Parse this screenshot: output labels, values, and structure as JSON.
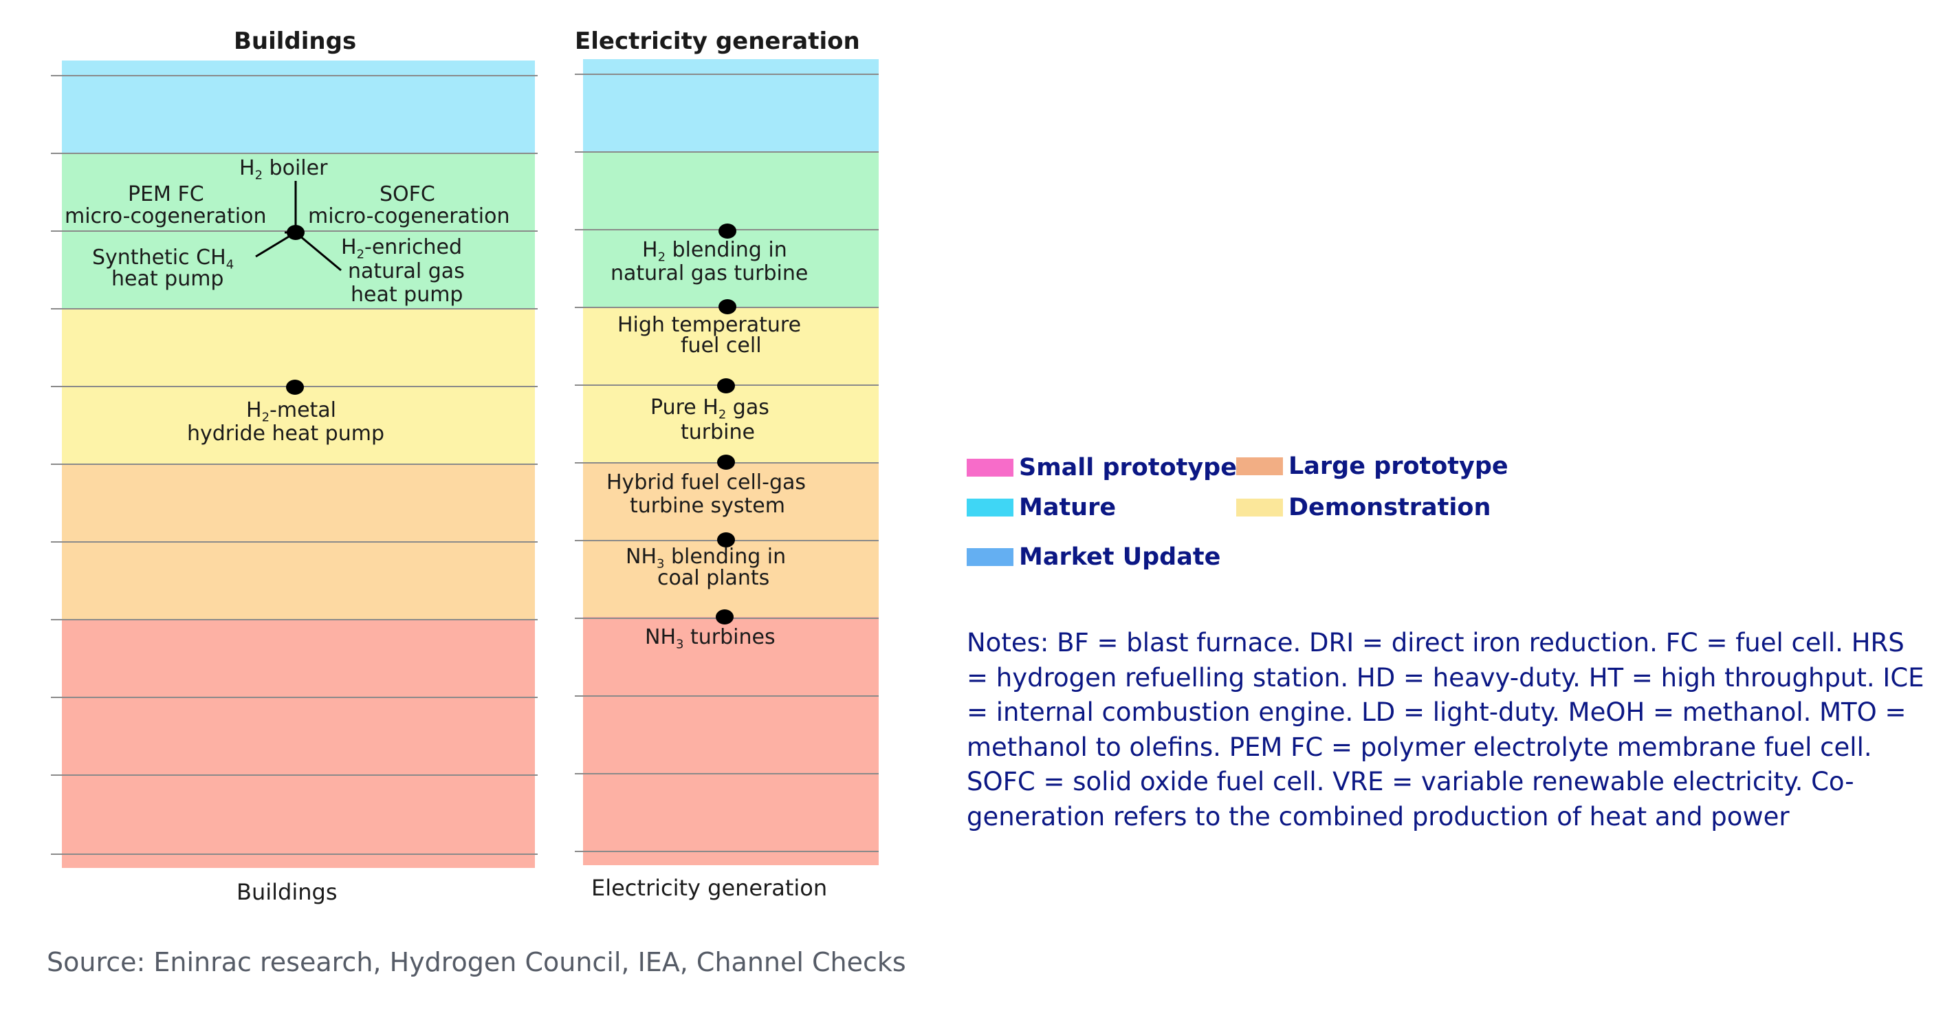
{
  "colors": {
    "mature": "#a6e9fb",
    "demonstration_green": "#b3f5c8",
    "demonstration_yellow": "#fdf3a8",
    "large_prototype": "#fdd9a2",
    "small_prototype": "#fdb1a4",
    "rules": "#8a8a8a",
    "legend_text": "#0b1784"
  },
  "columns": [
    {
      "title": "Buildings",
      "footer": "Buildings",
      "items": [
        {
          "parts": [
            "H",
            "2",
            " boiler"
          ]
        },
        {
          "text": "PEM FC"
        },
        {
          "text": "micro-cogeneration"
        },
        {
          "text": "SOFC"
        },
        {
          "text": "micro-cogeneration"
        },
        {
          "parts": [
            "Synthetic CH",
            "4",
            ""
          ]
        },
        {
          "text": "heat pump"
        },
        {
          "parts": [
            "H",
            "2",
            "-enriched"
          ]
        },
        {
          "text": "natural gas"
        },
        {
          "text": "heat pump"
        },
        {
          "parts": [
            "H",
            "2",
            "-metal"
          ]
        },
        {
          "text": "hydride heat pump"
        }
      ]
    },
    {
      "title": "Electricity generation",
      "footer": "Electricity generation",
      "items": [
        {
          "parts": [
            "H",
            "2",
            " blending in"
          ]
        },
        {
          "text": "natural gas turbine"
        },
        {
          "text": "High temperature"
        },
        {
          "text": "fuel cell"
        },
        {
          "parts": [
            "Pure H",
            "2",
            " gas"
          ]
        },
        {
          "text": "turbine"
        },
        {
          "text": "Hybrid fuel cell-gas"
        },
        {
          "text": "turbine system"
        },
        {
          "parts": [
            "NH",
            "3",
            " blending in"
          ]
        },
        {
          "text": "coal plants"
        },
        {
          "parts": [
            "NH",
            "3",
            " turbines"
          ]
        }
      ]
    }
  ],
  "legend": [
    {
      "label": "Small prototype",
      "color": "#f76cc9"
    },
    {
      "label": "Large prototype",
      "color": "#f2ae84"
    },
    {
      "label": "Mature",
      "color": "#3fd6f5"
    },
    {
      "label": "Demonstration",
      "color": "#fbe79a"
    },
    {
      "label": "Market Update",
      "color": "#64aff2"
    }
  ],
  "notes": "Notes: BF = blast furnace. DRI = direct iron reduction. FC = fuel cell. HRS = hydrogen refuelling station. HD = heavy-duty. HT = high throughput. ICE = internal combustion engine. LD = light-duty. MeOH = methanol. MTO = methanol to olefins. PEM FC = polymer electrolyte membrane fuel cell. SOFC = solid oxide fuel cell. VRE = variable renewable electricity. Co-generation refers to the combined production of heat and power",
  "source": "Source: Eninrac research, Hydrogen Council, IEA, Channel Checks"
}
